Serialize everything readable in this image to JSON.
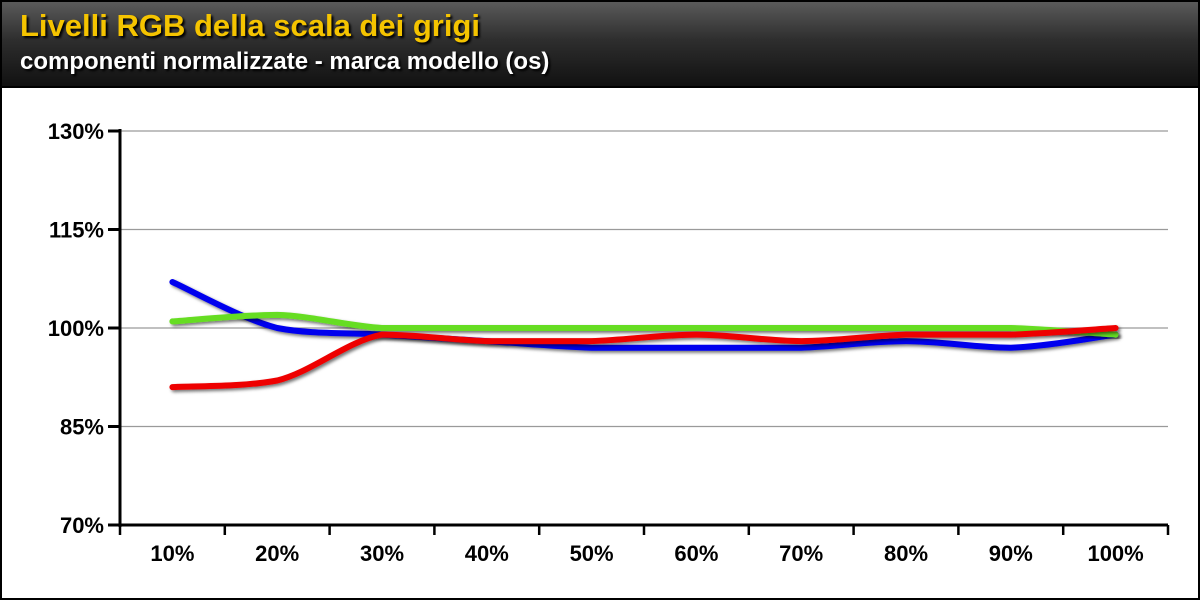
{
  "header": {
    "title": "Livelli RGB della scala dei grigi",
    "subtitle": "componenti normalizzate - marca modello (os)"
  },
  "chart_data": {
    "type": "line",
    "title": "Livelli RGB della scala dei grigi",
    "subtitle": "componenti normalizzate - marca modello (os)",
    "categories": [
      "10%",
      "20%",
      "30%",
      "40%",
      "50%",
      "60%",
      "70%",
      "80%",
      "90%",
      "100%"
    ],
    "y_ticks": [
      "70%",
      "85%",
      "100%",
      "115%",
      "130%"
    ],
    "ylim": [
      70,
      130
    ],
    "grid": true,
    "legend": "none",
    "series": [
      {
        "color": "#0000ee",
        "values": [
          107,
          100,
          99,
          98,
          97,
          97,
          97,
          98,
          97,
          99
        ]
      },
      {
        "color": "#66dd22",
        "values": [
          101,
          102,
          100,
          100,
          100,
          100,
          100,
          100,
          100,
          99
        ]
      },
      {
        "color": "#ee0000",
        "values": [
          91,
          92,
          99,
          98,
          98,
          99,
          98,
          99,
          99,
          100
        ]
      }
    ]
  }
}
